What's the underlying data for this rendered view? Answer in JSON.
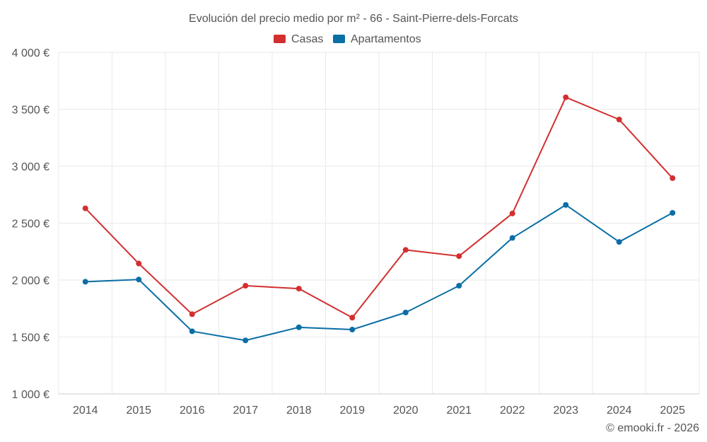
{
  "chart_data": {
    "type": "line",
    "title": "Evolución del precio medio por m² - 66 - Saint-Pierre-dels-Forcats",
    "categories": [
      "2014",
      "2015",
      "2016",
      "2017",
      "2018",
      "2019",
      "2020",
      "2021",
      "2022",
      "2023",
      "2024",
      "2025"
    ],
    "series": [
      {
        "name": "Casas",
        "color": "#d32f2f",
        "values": [
          2630,
          2145,
          1700,
          1950,
          1925,
          1670,
          2265,
          2210,
          2585,
          3605,
          3410,
          2895
        ]
      },
      {
        "name": "Apartamentos",
        "color": "#0b6ea5",
        "values": [
          1985,
          2005,
          1550,
          1470,
          1585,
          1565,
          1715,
          1950,
          2370,
          2660,
          2335,
          2590
        ]
      }
    ],
    "y_ticks": [
      1000,
      1500,
      2000,
      2500,
      3000,
      3500,
      4000
    ],
    "y_tick_labels": [
      "1 000 €",
      "1 500 €",
      "2 000 €",
      "2 500 €",
      "3 000 €",
      "3 500 €",
      "4 000 €"
    ],
    "ylim": [
      1000,
      4000
    ],
    "xlabel": "",
    "ylabel": "",
    "legend_position": "top-center",
    "grid": true
  },
  "credit": "© emooki.fr - 2026"
}
